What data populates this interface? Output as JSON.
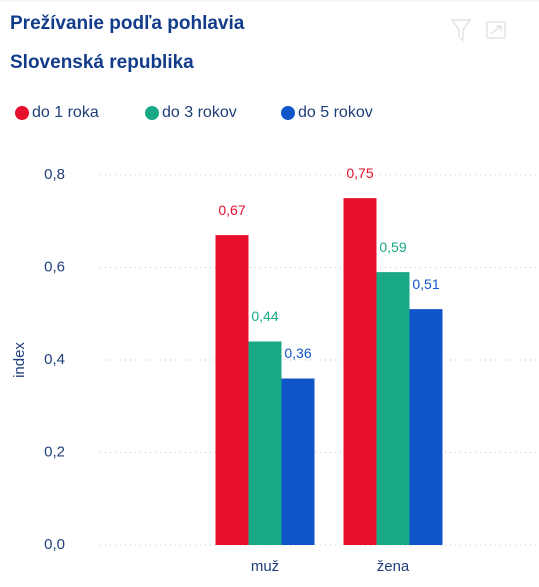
{
  "chart_data": {
    "type": "bar",
    "title": "Prežívanie podľa pohlavia",
    "subtitle": "Slovenská republika",
    "y_label": "index",
    "categories": [
      "muž",
      "žena"
    ],
    "series": [
      {
        "name": "do 1 roka",
        "color": "#e6102d",
        "values": [
          0.67,
          0.75
        ],
        "value_labels": [
          "0,67",
          "0,75"
        ]
      },
      {
        "name": "do 3 rokov",
        "color": "#19a886",
        "values": [
          0.44,
          0.59
        ],
        "value_labels": [
          "0,44",
          "0,59"
        ]
      },
      {
        "name": "do 5 rokov",
        "color": "#1156c9",
        "values": [
          0.36,
          0.51
        ],
        "value_labels": [
          "0,36",
          "0,51"
        ]
      }
    ],
    "ylim": [
      0,
      0.8
    ],
    "yticks": [
      {
        "value": 0,
        "label": "0,0"
      },
      {
        "value": 0.2,
        "label": "0,2"
      },
      {
        "value": 0.4,
        "label": "0,4"
      },
      {
        "value": 0.6,
        "label": "0,6"
      },
      {
        "value": 0.8,
        "label": "0,8"
      }
    ],
    "grid": true,
    "legend": "top-left"
  }
}
